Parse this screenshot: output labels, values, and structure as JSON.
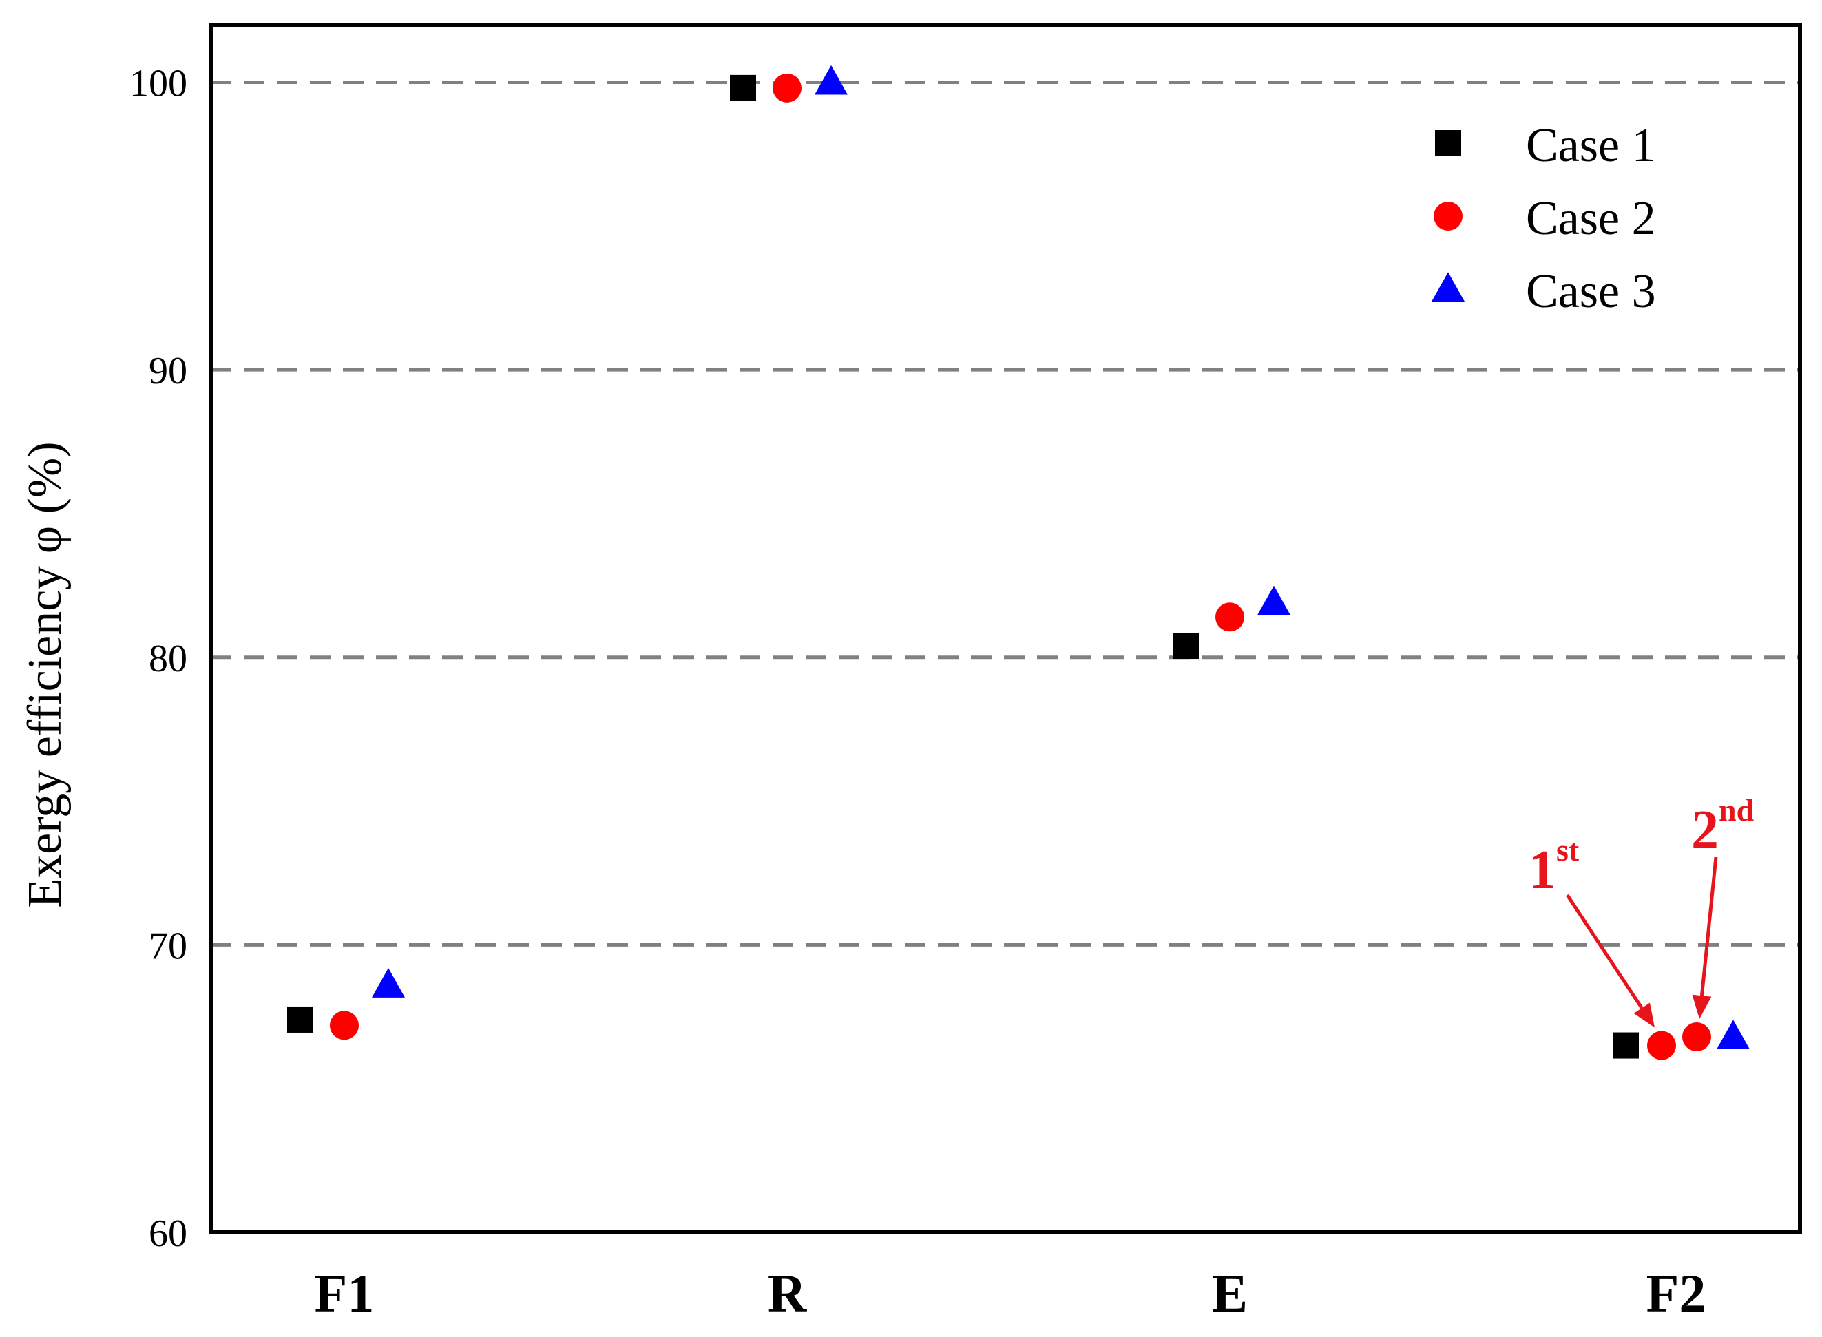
{
  "chart_data": {
    "type": "scatter",
    "title": "",
    "xlabel": "",
    "ylabel": "Exergy efficiency φ (%)",
    "categories": [
      "F1",
      "R",
      "E",
      "F2"
    ],
    "ylim": [
      60,
      102
    ],
    "yticks": [
      60,
      70,
      80,
      90,
      100
    ],
    "grid": "horizontal dashed at 70, 80, 90, 100",
    "legend_position": "top-right",
    "series": [
      {
        "name": "Case 1",
        "marker": "square",
        "color": "#000000",
        "points": [
          {
            "category": "F1",
            "y": 67.4
          },
          {
            "category": "R",
            "y": 99.8
          },
          {
            "category": "E",
            "y": 80.4
          },
          {
            "category": "F2",
            "y": 66.5
          }
        ]
      },
      {
        "name": "Case 2",
        "marker": "circle",
        "color": "#ff0000",
        "points": [
          {
            "category": "F1",
            "y": 67.2
          },
          {
            "category": "R",
            "y": 99.8
          },
          {
            "category": "E",
            "y": 81.4
          },
          {
            "category": "F2",
            "y": 66.5,
            "note": "1st"
          },
          {
            "category": "F2",
            "y": 66.8,
            "note": "2nd"
          }
        ]
      },
      {
        "name": "Case 3",
        "marker": "triangle",
        "color": "#0000ff",
        "points": [
          {
            "category": "F1",
            "y": 68.6
          },
          {
            "category": "R",
            "y": 100.0
          },
          {
            "category": "E",
            "y": 81.9
          },
          {
            "category": "F2",
            "y": 66.8
          }
        ]
      }
    ],
    "annotations": [
      {
        "text": "1",
        "sup": "st",
        "points_to": "Case 2 first F2 point"
      },
      {
        "text": "2",
        "sup": "nd",
        "points_to": "Case 2 second F2 point"
      }
    ]
  }
}
